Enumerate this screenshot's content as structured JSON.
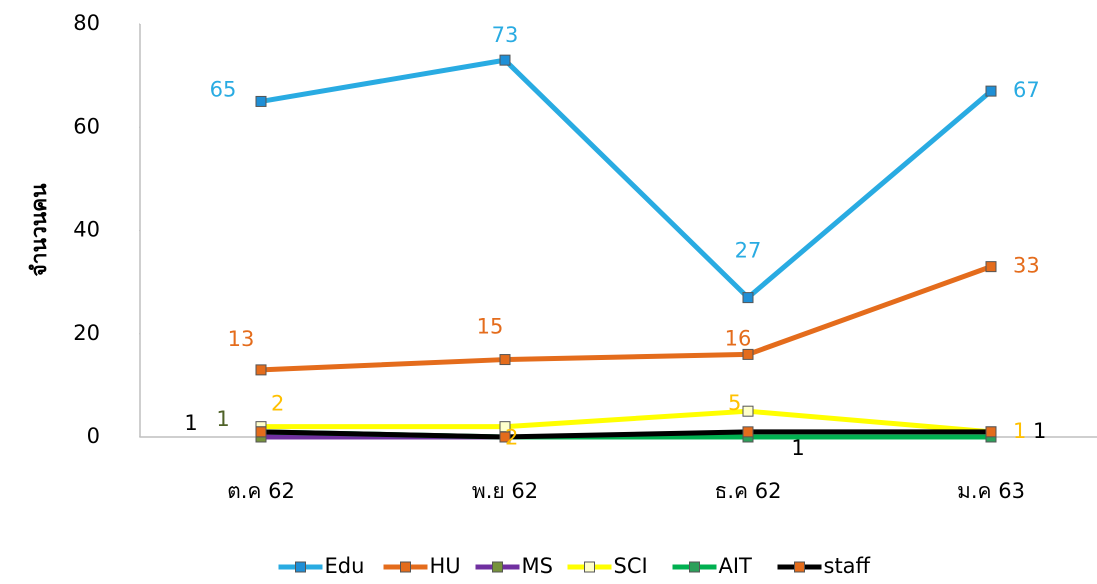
{
  "chart_data": {
    "type": "line",
    "y_label": "จำนวนคน",
    "categories": [
      "ต.ค 62",
      "พ.ย 62",
      "ธ.ค 62",
      "ม.ค 63"
    ],
    "ylim": [
      0,
      80
    ],
    "yticks": [
      0,
      20,
      40,
      60,
      80
    ],
    "grid": false,
    "legend": "bottom",
    "series": [
      {
        "name": "Edu",
        "color": "#29abe2",
        "marker": "#1f8fd6",
        "label_color": "#29abe2",
        "values": [
          65,
          73,
          27,
          67
        ],
        "value_labels": [
          "65",
          "73",
          "27",
          "67"
        ]
      },
      {
        "name": "HU",
        "color": "#e46c1c",
        "marker": "#e46c1c",
        "label_color": "#e46c1c",
        "values": [
          13,
          15,
          16,
          33
        ],
        "value_labels": [
          "13",
          "15",
          "16",
          "33"
        ]
      },
      {
        "name": "MS",
        "color": "#7030a0",
        "marker": "#76923c",
        "label_color": "#7030a0",
        "values": [
          0,
          0,
          0,
          0
        ],
        "value_labels": [
          null,
          null,
          null,
          null
        ]
      },
      {
        "name": "SCI",
        "color": "#ffff00",
        "marker": "#ffffcc",
        "label_color": "#ffc000",
        "values": [
          2,
          2,
          5,
          1
        ],
        "value_labels": [
          "2",
          "2",
          "5",
          "1"
        ]
      },
      {
        "name": "AIT",
        "color": "#00b050",
        "marker": "#2ca05a",
        "label_color": "#4f6228",
        "values": [
          1,
          0,
          0,
          0
        ],
        "value_labels": [
          "1",
          null,
          null,
          null
        ]
      },
      {
        "name": "staff",
        "color": "#000000",
        "marker": "#e46c1c",
        "label_color": "#000000",
        "values": [
          1,
          0,
          1,
          1
        ],
        "value_labels": [
          "1",
          null,
          "1",
          "1"
        ]
      }
    ]
  }
}
